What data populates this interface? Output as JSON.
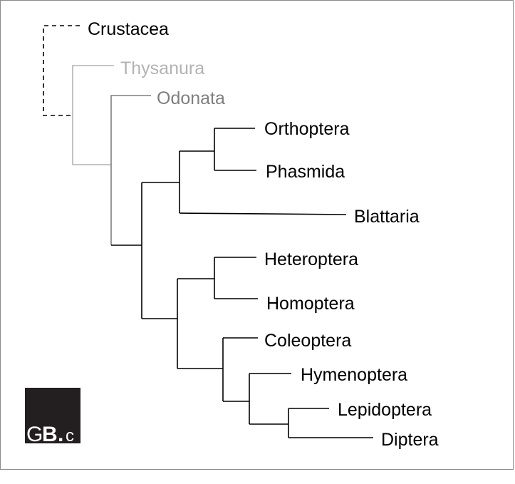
{
  "taxa": [
    {
      "id": "crustacea",
      "label": "Crustacea",
      "color": "#000000",
      "branch": "dashed"
    },
    {
      "id": "thysanura",
      "label": "Thysanura",
      "color": "#b3b3b3"
    },
    {
      "id": "odonata",
      "label": "Odonata",
      "color": "#7f7f7f"
    },
    {
      "id": "orthoptera",
      "label": "Orthoptera",
      "color": "#000000"
    },
    {
      "id": "phasmida",
      "label": "Phasmida",
      "color": "#000000"
    },
    {
      "id": "blattaria",
      "label": "Blattaria",
      "color": "#000000"
    },
    {
      "id": "heteroptera",
      "label": "Heteroptera",
      "color": "#000000"
    },
    {
      "id": "homoptera",
      "label": "Homoptera",
      "color": "#000000"
    },
    {
      "id": "coleoptera",
      "label": "Coleoptera",
      "color": "#000000"
    },
    {
      "id": "hymenoptera",
      "label": "Hymenoptera",
      "color": "#000000"
    },
    {
      "id": "lepidoptera",
      "label": "Lepidoptera",
      "color": "#000000"
    },
    {
      "id": "diptera",
      "label": "Diptera",
      "color": "#000000"
    }
  ],
  "logo": {
    "text_G": "G",
    "text_B": "B",
    "text_dot": ".",
    "text_c": "c",
    "background": "#231f20",
    "foreground": "#ffffff"
  }
}
